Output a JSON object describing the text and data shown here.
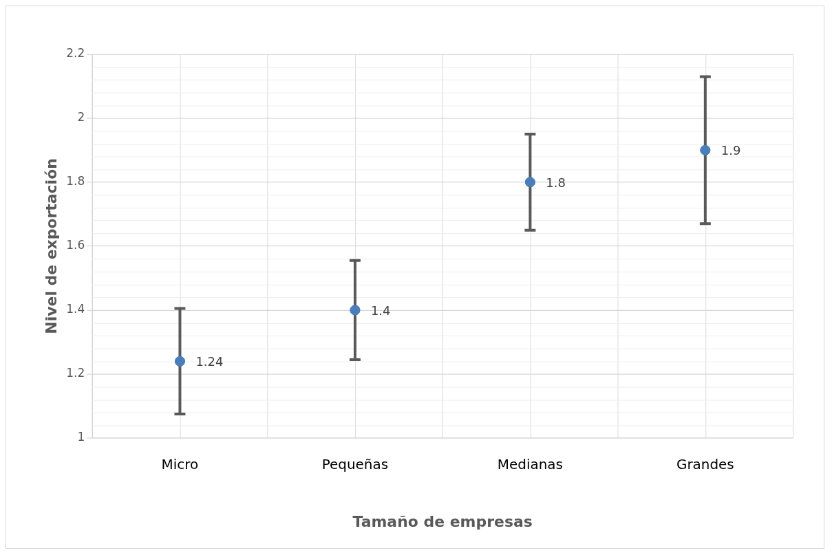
{
  "chart_data": {
    "type": "scatter",
    "xlabel": "Tamaño de empresas",
    "ylabel": "Nivel de exportación",
    "categories": [
      "Micro",
      "Pequeñas",
      "Medianas",
      "Grandes"
    ],
    "series": [
      {
        "color": "#4a7ebb",
        "values": [
          1.24,
          1.4,
          1.8,
          1.9
        ],
        "errors": [
          0.165,
          0.155,
          0.15,
          0.23
        ]
      }
    ],
    "ylim": [
      1,
      2.2
    ],
    "yticks": [
      1,
      1.2,
      1.4,
      1.6,
      1.8,
      2,
      2.2
    ],
    "grid": true,
    "legend": false,
    "marker": "circle",
    "data_labels": true
  }
}
